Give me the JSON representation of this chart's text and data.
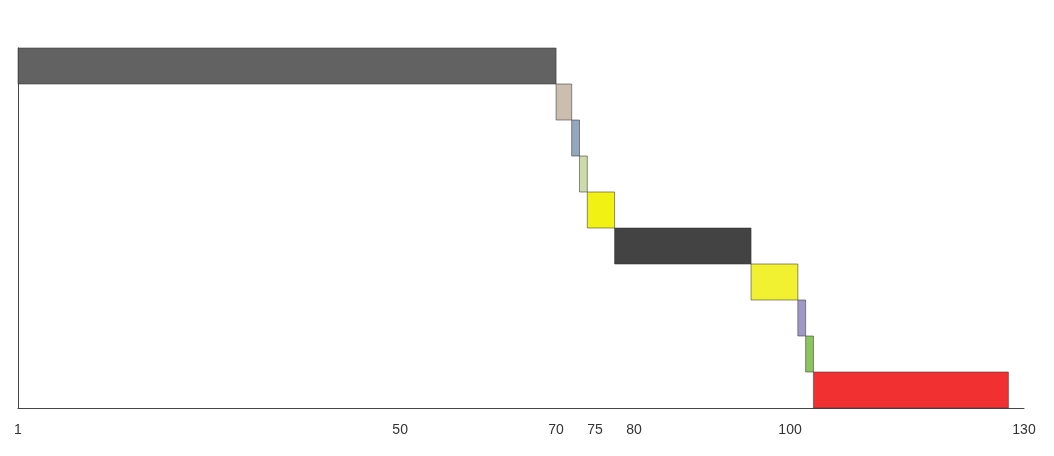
{
  "chart_data": {
    "type": "bar",
    "orientation": "horizontal",
    "categories": [
      null,
      null,
      null,
      null,
      null,
      null,
      null,
      null,
      null,
      null
    ],
    "base": [
      1,
      70,
      72,
      73,
      74,
      77.5,
      95,
      101,
      102,
      103
    ],
    "values": [
      69,
      2,
      1,
      1,
      3.5,
      17.5,
      6,
      1,
      1,
      25
    ],
    "colors": [
      "#555555",
      "#c8b8a8",
      "#8aa0b8",
      "#c8d8a0",
      "#f0f000",
      "#333333",
      "#f0f020",
      "#9890c0",
      "#80c050",
      "#f02020"
    ],
    "xlim": [
      1,
      130
    ],
    "xticks": [
      1,
      50,
      70,
      75,
      80,
      100,
      130
    ],
    "tick_labels": "x",
    "grid": false
  }
}
